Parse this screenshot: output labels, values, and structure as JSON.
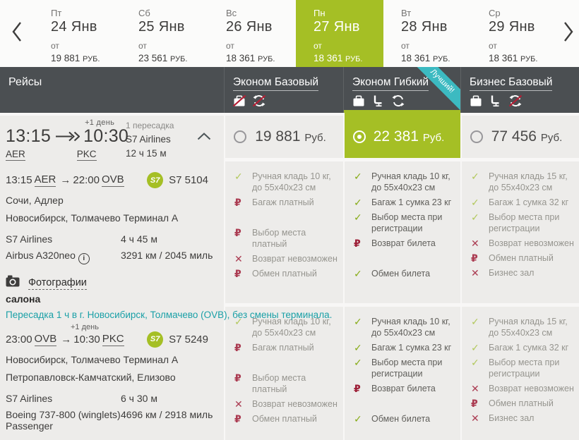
{
  "colors": {
    "brand_green": "#a5bf25",
    "header_dark": "#4b4f52",
    "ribbon_teal": "#3cbac1",
    "link_teal": "#1aa0a7",
    "negative_red": "#9d2038"
  },
  "icon_glyphs": {
    "check": "✓",
    "rub": "₽",
    "cross": "✕",
    "arrow": "→"
  },
  "date_strip": {
    "from_label": "от",
    "currency": "РУБ.",
    "days": [
      {
        "dow": "Пт",
        "date": "24 Янв",
        "price": "19 881",
        "selected": false
      },
      {
        "dow": "Сб",
        "date": "25 Янв",
        "price": "23 561",
        "selected": false
      },
      {
        "dow": "Вс",
        "date": "26 Янв",
        "price": "18 361",
        "selected": false
      },
      {
        "dow": "Пн",
        "date": "27 Янв",
        "price": "18 361",
        "selected": true
      },
      {
        "dow": "Вт",
        "date": "28 Янв",
        "price": "18 361",
        "selected": false
      },
      {
        "dow": "Ср",
        "date": "29 Янв",
        "price": "18 361",
        "selected": false
      }
    ]
  },
  "header": {
    "flights_label": "Рейсы",
    "fare_columns": [
      {
        "title": "Эконом Базовый",
        "selected": false,
        "badge": "",
        "icons": [
          {
            "name": "baggage-icon",
            "slashed": true
          },
          {
            "name": "exchange-icon",
            "slashed": true
          }
        ]
      },
      {
        "title": "Эконом Гибкий",
        "selected": true,
        "badge": "Лучший!",
        "icons": [
          {
            "name": "baggage-icon",
            "slashed": false
          },
          {
            "name": "seat-icon",
            "slashed": false
          },
          {
            "name": "exchange-icon",
            "slashed": false
          }
        ]
      },
      {
        "title": "Бизнес Базовый",
        "selected": false,
        "badge": "",
        "icons": [
          {
            "name": "baggage-icon",
            "slashed": false
          },
          {
            "name": "seat-icon",
            "slashed": false
          },
          {
            "name": "exchange-icon",
            "slashed": true
          }
        ]
      }
    ]
  },
  "flight": {
    "summary": {
      "depart_time": "13:15",
      "arrive_time": "10:30",
      "plus_day": "+1 день",
      "depart_code": "AER",
      "arrive_code": "PKC",
      "stops": "1 пересадка",
      "airline": "S7 Airlines",
      "duration": "12 ч 15 м"
    },
    "s7_logo_text": "S7",
    "photos_link_line1": "Фотографии",
    "photos_link_line2": "салона",
    "transfer_note": "Пересадка 1 ч в г. Новосибирск, Толмачево (OVB), без смены терминала.",
    "segments": [
      {
        "dep_time": "13:15",
        "dep_code": "AER",
        "arr_time": "22:00",
        "arr_code": "OVB",
        "flight_no": "S7 5104",
        "from_city": "Сочи, Адлер",
        "to_city": "Новосибирск, Толмачево Терминал А",
        "airline": "S7 Airlines",
        "duration": "4 ч 45 м",
        "aircraft": "Airbus A320neo",
        "distance": "3291 км / 2045 миль"
      },
      {
        "plus_day": "+1 день",
        "dep_time": "23:00",
        "dep_code": "OVB",
        "arr_time": "10:30",
        "arr_code": "PKC",
        "flight_no": "S7 5249",
        "from_city": "Новосибирск, Толмачево Терминал А",
        "to_city": "Петропавловск-Камчатский, Елизово",
        "airline": "S7 Airlines",
        "duration": "6 ч 30 м",
        "aircraft": "Boeing 737-800 (winglets) Passenger",
        "distance": "4696 км / 2918 миль"
      }
    ]
  },
  "fares": [
    {
      "title": "Эконом Базовый",
      "price": "19 881",
      "currency": "Руб.",
      "selected": false,
      "segment_features": [
        [
          {
            "icon": "check",
            "text": "Ручная кладь 10 кг, до 55x40x23 см"
          },
          {
            "icon": "rub",
            "text": "Багаж платный",
            "gap_after": true
          },
          {
            "icon": "rub",
            "text": "Выбор места платный"
          },
          {
            "icon": "cross",
            "text": "Возврат невозможен"
          },
          {
            "icon": "rub",
            "text": "Обмен платный"
          }
        ],
        [
          {
            "icon": "check",
            "text": "Ручная кладь 10 кг, до 55x40x23 см"
          },
          {
            "icon": "rub",
            "text": "Багаж платный",
            "gap_after": true
          },
          {
            "icon": "rub",
            "text": "Выбор места платный"
          },
          {
            "icon": "cross",
            "text": "Возврат невозможен"
          },
          {
            "icon": "rub",
            "text": "Обмен платный"
          }
        ]
      ]
    },
    {
      "title": "Эконом Гибкий",
      "price": "22 381",
      "currency": "Руб.",
      "selected": true,
      "segment_features": [
        [
          {
            "icon": "check",
            "text": "Ручная кладь 10 кг, до 55x40x23 см"
          },
          {
            "icon": "check",
            "text": "Багаж 1 сумка 23 кг"
          },
          {
            "icon": "check",
            "text": "Выбор места при регистрации"
          },
          {
            "icon": "rub",
            "text": "Возврат билета",
            "gap_after": true
          },
          {
            "icon": "check",
            "text": "Обмен билета"
          }
        ],
        [
          {
            "icon": "check",
            "text": "Ручная кладь 10 кг, до 55x40x23 см"
          },
          {
            "icon": "check",
            "text": "Багаж 1 сумка 23 кг"
          },
          {
            "icon": "check",
            "text": "Выбор места при регистрации"
          },
          {
            "icon": "rub",
            "text": "Возврат билета",
            "gap_after": true
          },
          {
            "icon": "check",
            "text": "Обмен билета"
          }
        ]
      ]
    },
    {
      "title": "Бизнес Базовый",
      "price": "77 456",
      "currency": "Руб.",
      "selected": false,
      "segment_features": [
        [
          {
            "icon": "check",
            "text": "Ручная кладь 15 кг, до 55x40x23 см"
          },
          {
            "icon": "check",
            "text": "Багаж 1 сумка 32 кг"
          },
          {
            "icon": "check",
            "text": "Выбор места при регистрации"
          },
          {
            "icon": "cross",
            "text": "Возврат невозможен"
          },
          {
            "icon": "rub",
            "text": "Обмен платный"
          },
          {
            "icon": "cross",
            "text": "Бизнес зал"
          }
        ],
        [
          {
            "icon": "check",
            "text": "Ручная кладь 15 кг, до 55x40x23 см"
          },
          {
            "icon": "check",
            "text": "Багаж 1 сумка 32 кг"
          },
          {
            "icon": "check",
            "text": "Выбор места при регистрации"
          },
          {
            "icon": "cross",
            "text": "Возврат невозможен"
          },
          {
            "icon": "rub",
            "text": "Обмен платный"
          },
          {
            "icon": "cross",
            "text": "Бизнес зал"
          }
        ]
      ]
    }
  ]
}
